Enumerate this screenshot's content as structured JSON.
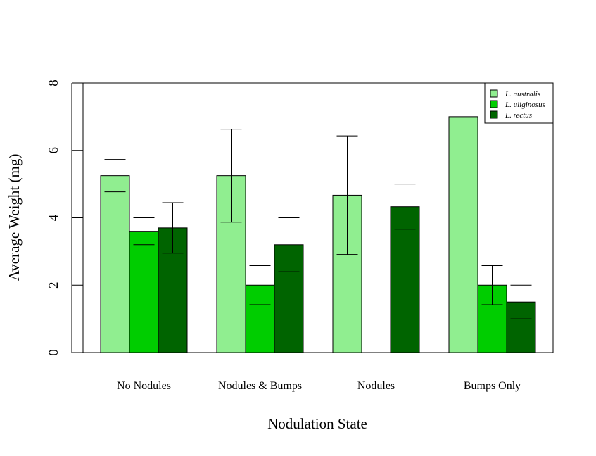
{
  "chart_data": {
    "type": "bar",
    "title": "",
    "xlabel": "Nodulation State",
    "ylabel": "Average Weight (mg)",
    "ylim": [
      0,
      8
    ],
    "yticks": [
      0,
      2,
      4,
      6,
      8
    ],
    "categories": [
      "No Nodules",
      "Nodules & Bumps",
      "Nodules",
      "Bumps Only"
    ],
    "series": [
      {
        "name": "L. australis",
        "color": "#90EE90",
        "values": [
          5.25,
          5.25,
          4.67,
          7.0
        ],
        "errors": [
          0.48,
          1.38,
          1.76,
          null
        ]
      },
      {
        "name": "L. uliginosus",
        "color": "#00CD00",
        "values": [
          3.6,
          2.0,
          null,
          2.0
        ],
        "errors": [
          0.4,
          0.58,
          null,
          0.58
        ]
      },
      {
        "name": "L. rectus",
        "color": "#006400",
        "values": [
          3.7,
          3.2,
          4.33,
          1.5
        ],
        "errors": [
          0.75,
          0.8,
          0.67,
          0.5
        ]
      }
    ],
    "legend_position": "top-right",
    "grid": false
  }
}
